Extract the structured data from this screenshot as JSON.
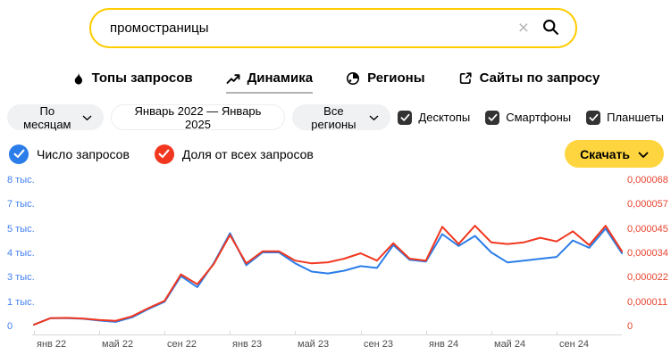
{
  "search": {
    "value": "промостраницы"
  },
  "tabs": [
    {
      "label": "Топы запросов",
      "icon": "flame-icon",
      "active": false
    },
    {
      "label": "Динамика",
      "icon": "trend-icon",
      "active": true
    },
    {
      "label": "Регионы",
      "icon": "globe-icon",
      "active": false
    },
    {
      "label": "Сайты по запросу",
      "icon": "external-link-icon",
      "active": false
    }
  ],
  "filters": {
    "period": "По месяцам",
    "date_range": "Январь 2022 — Январь 2025",
    "region": "Все регионы",
    "devices": [
      {
        "label": "Десктопы",
        "checked": true
      },
      {
        "label": "Смартфоны",
        "checked": true
      },
      {
        "label": "Планшеты",
        "checked": true
      }
    ]
  },
  "legend": [
    {
      "label": "Число запросов",
      "color": "#2b7de9"
    },
    {
      "label": "Доля от всех запросов",
      "color": "#f1371f"
    }
  ],
  "download_label": "Скачать",
  "colors": {
    "brand_yellow": "#ffcc00",
    "axis_left_text": "#4280f0",
    "axis_right_text": "#e8432f",
    "axis_line": "#d9d9d9"
  },
  "chart_data": {
    "type": "line",
    "x_range": "Январь 2022 — Январь 2025 (по месяцам, 37 точек)",
    "x_ticks": [
      {
        "index": 0,
        "label": "янв 22"
      },
      {
        "index": 4,
        "label": "май 22"
      },
      {
        "index": 8,
        "label": "сен 22"
      },
      {
        "index": 12,
        "label": "янв 23"
      },
      {
        "index": 16,
        "label": "май 23"
      },
      {
        "index": 20,
        "label": "сен 23"
      },
      {
        "index": 24,
        "label": "янв 24"
      },
      {
        "index": 28,
        "label": "май 24"
      },
      {
        "index": 32,
        "label": "сен 24"
      }
    ],
    "y_axis_left": {
      "labels": [
        "0",
        "1 тыс.",
        "3 тыс.",
        "4 тыс.",
        "5 тыс.",
        "7 тыс.",
        "8 тыс."
      ],
      "max": 8000,
      "color": "#4280f0"
    },
    "y_axis_right": {
      "labels": [
        "0",
        "0,000011",
        "0,000022",
        "0,000034",
        "0,000045",
        "0,000057",
        "0,000068 %"
      ],
      "max": 6.8e-05,
      "color": "#e8432f"
    },
    "grid": "off",
    "legend_position": "top-left",
    "series": [
      {
        "name": "Число запросов",
        "axis": "left",
        "color": "#2b7de9",
        "values": [
          100,
          450,
          450,
          420,
          320,
          250,
          500,
          950,
          1350,
          2750,
          2150,
          3450,
          5100,
          3350,
          4050,
          4050,
          3450,
          3000,
          2900,
          3050,
          3300,
          3200,
          4450,
          3650,
          3550,
          5050,
          4400,
          4950,
          4050,
          3500,
          3600,
          3700,
          3800,
          4700,
          4300,
          5350,
          4000
        ]
      },
      {
        "name": "Доля от всех запросов",
        "axis": "right",
        "color": "#f1371f",
        "values": [
          8e-07,
          3.8e-06,
          4e-06,
          3.7e-06,
          3e-06,
          2.6e-06,
          4.7e-06,
          8.5e-06,
          1.19e-05,
          2.42e-05,
          1.96e-05,
          2.89e-05,
          4.25e-05,
          2.93e-05,
          3.49e-05,
          3.49e-05,
          3.06e-05,
          2.93e-05,
          2.98e-05,
          3.15e-05,
          3.4e-05,
          3.06e-05,
          3.87e-05,
          3.15e-05,
          3.06e-05,
          4.63e-05,
          3.83e-05,
          4.68e-05,
          3.91e-05,
          3.83e-05,
          3.91e-05,
          4.12e-05,
          3.95e-05,
          4.42e-05,
          3.78e-05,
          4.68e-05,
          3.49e-05
        ]
      }
    ]
  }
}
